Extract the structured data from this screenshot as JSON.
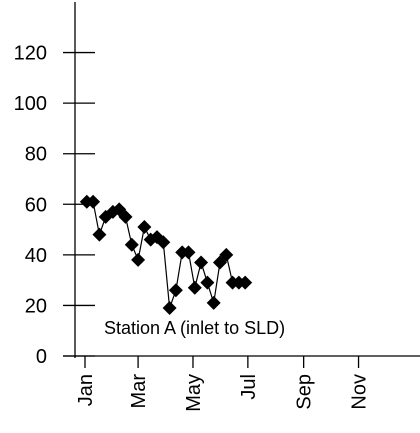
{
  "chart_data": {
    "type": "line",
    "marker": "diamond",
    "title": "",
    "xlabel": "",
    "ylabel": "",
    "x_axis_type": "date",
    "xlim": [
      "Jan",
      "Dec"
    ],
    "ylim": [
      0,
      140
    ],
    "x_tick_labels": [
      "Jan",
      "Mar",
      "May",
      "Jul",
      "Sep",
      "Nov"
    ],
    "y_ticks": [
      0,
      20,
      40,
      60,
      80,
      100,
      120
    ],
    "y_tick_labels": [
      "0",
      "20",
      "40",
      "60",
      "80",
      "100",
      "120"
    ],
    "grid": false,
    "annotation": "Station A (inlet to SLD)",
    "colors": {
      "series": "#000000",
      "axis": "#000000"
    },
    "series": [
      {
        "x": [
          "Jan 3",
          "Jan 10",
          "Jan 17",
          "Jan 24",
          "Feb 1",
          "Feb 8",
          "Feb 15",
          "Feb 22",
          "Mar 1",
          "Mar 8",
          "Mar 15",
          "Mar 22",
          "Mar 29",
          "Apr 5",
          "Apr 12",
          "Apr 19",
          "Apr 26",
          "May 3",
          "May 10",
          "May 17",
          "May 24",
          "May 31",
          "Jun 7",
          "Jun 14",
          "Jun 21",
          "Jun 28"
        ],
        "y": [
          61,
          61,
          48,
          55,
          57,
          58,
          55,
          44,
          38,
          51,
          46,
          47,
          45,
          19,
          26,
          41,
          41,
          27,
          37,
          29,
          21,
          37,
          40,
          29,
          29,
          29
        ]
      }
    ]
  }
}
